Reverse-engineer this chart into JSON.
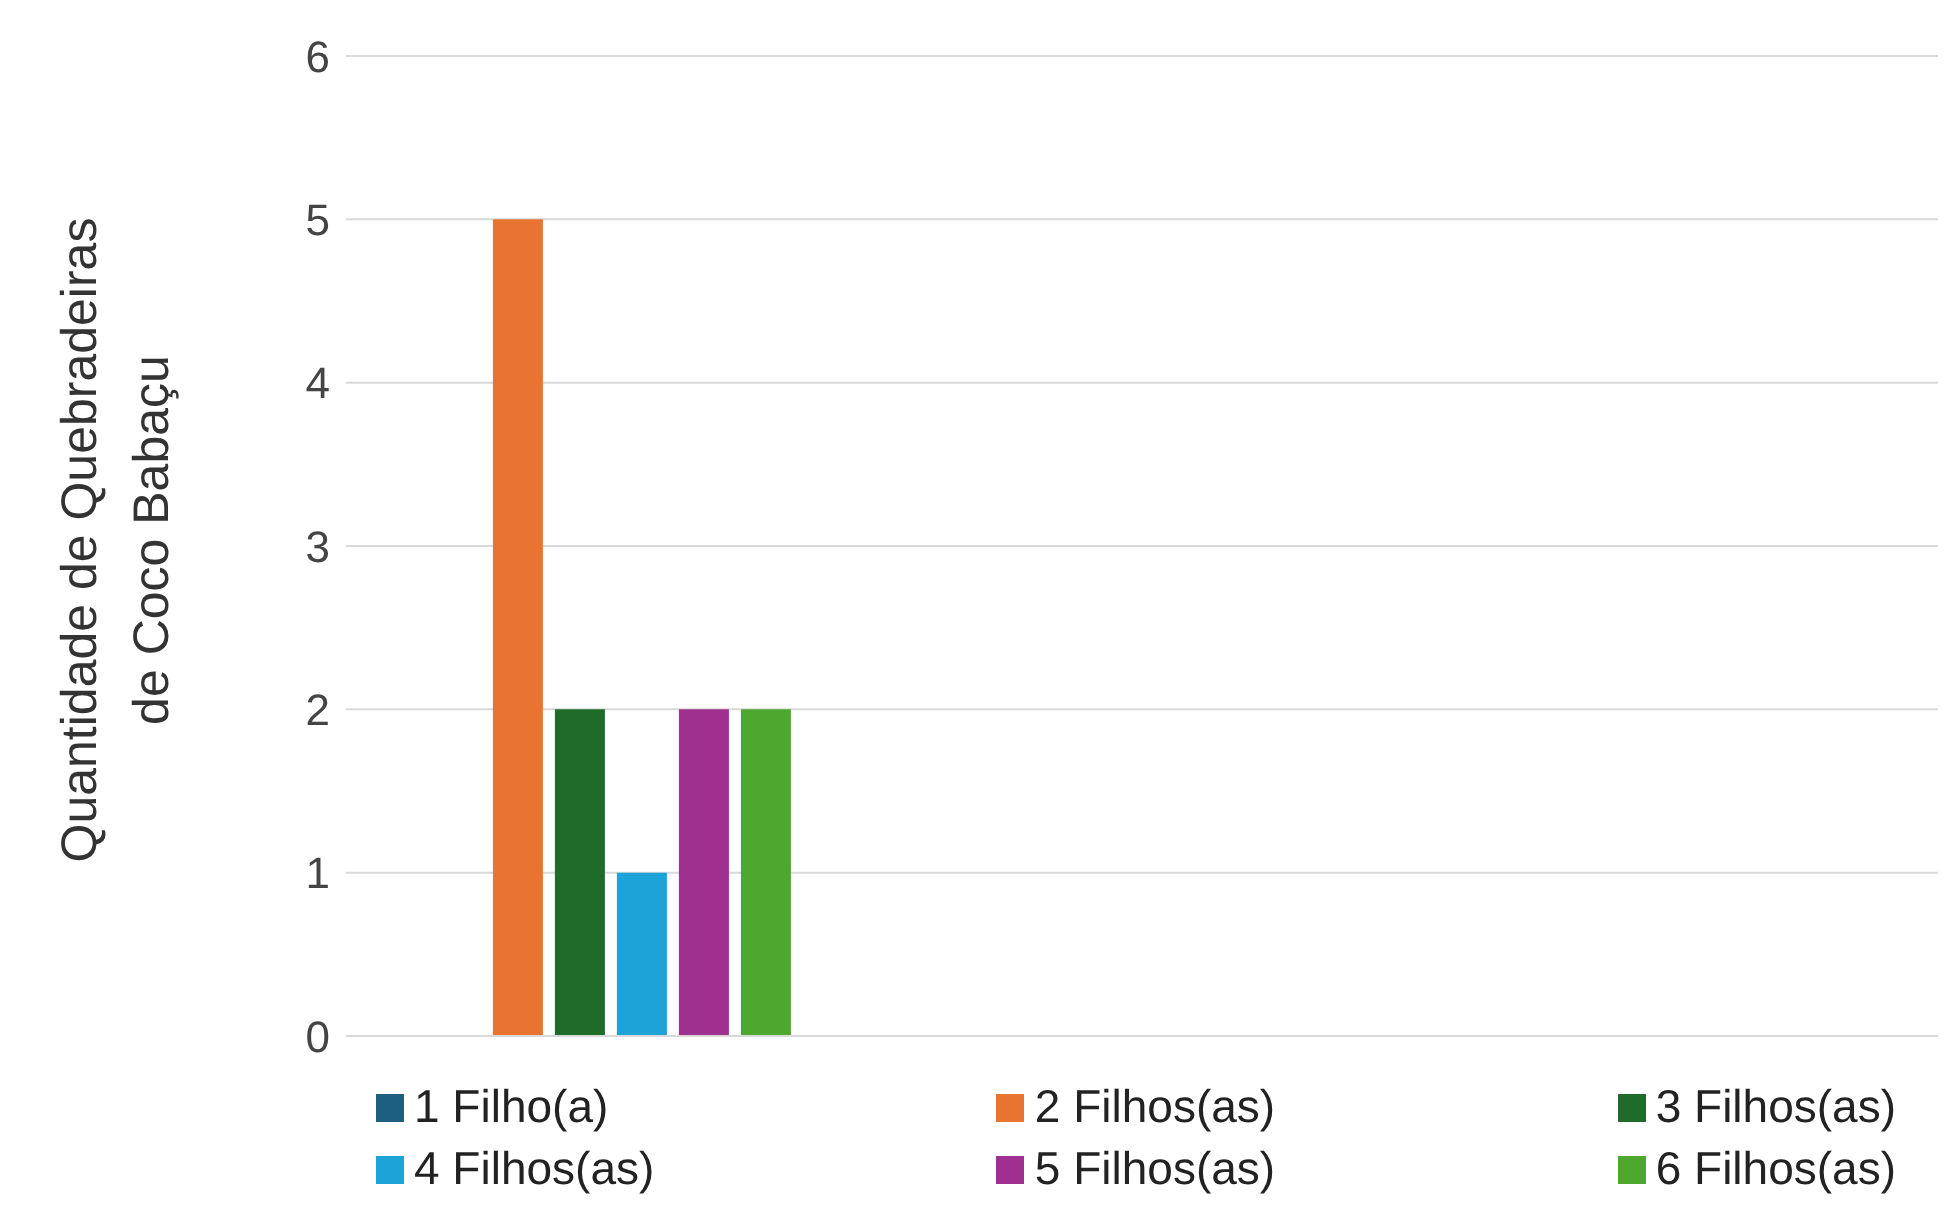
{
  "chart_data": {
    "type": "bar",
    "ylabel": "Quantidade de Quebradeiras de Coco Babaçu",
    "categories": [
      null,
      null,
      null
    ],
    "series": [
      {
        "name": "1 Filho(a)",
        "color": "#1d5f80",
        "values": [
          0,
          null,
          null
        ]
      },
      {
        "name": "2 Filhos(as)",
        "color": "#e97432",
        "values": [
          5,
          null,
          null
        ]
      },
      {
        "name": "3 Filhos(as)",
        "color": "#1e6b2a",
        "values": [
          2,
          null,
          null
        ]
      },
      {
        "name": "4 Filhos(as)",
        "color": "#1ea3d8",
        "values": [
          1,
          null,
          null
        ]
      },
      {
        "name": "5 Filhos(as)",
        "color": "#a0308f",
        "values": [
          2,
          null,
          null
        ]
      },
      {
        "name": "6 Filhos(as)",
        "color": "#4ea72e",
        "values": [
          2,
          null,
          null
        ]
      }
    ],
    "ylim": [
      0,
      6
    ],
    "yticks": [
      0,
      1,
      2,
      3,
      4,
      5,
      6
    ],
    "grid": "y",
    "legend": "bottom"
  }
}
